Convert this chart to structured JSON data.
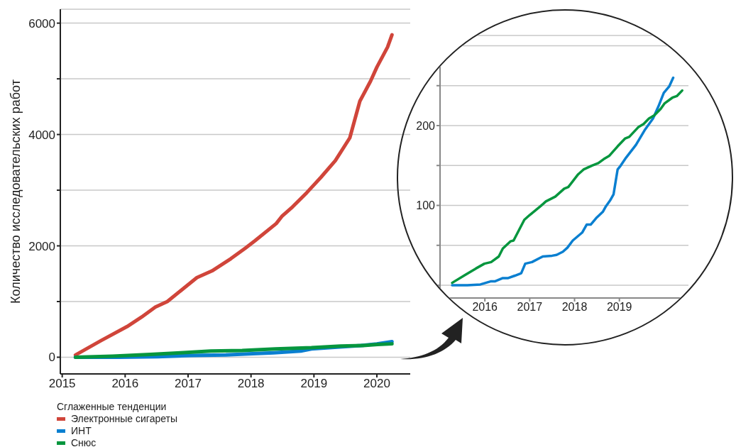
{
  "chart_data": [
    {
      "type": "line",
      "ylabel": "Количество исследовательских работ",
      "legend_title": "Сглаженные тенденции",
      "legend": "bottom left",
      "grid": "y",
      "marker": "none",
      "line_style": "solid",
      "xlim": [
        2014.97,
        2020.53
      ],
      "xticks": [
        2015,
        2016,
        2017,
        2018,
        2019,
        2020
      ],
      "ylim": [
        -300,
        6250
      ],
      "yticks": [
        0,
        {
          "value": 1000,
          "label": null
        },
        2000,
        {
          "value": 3000,
          "label": null
        },
        4000,
        {
          "value": 5000,
          "label": null
        },
        6000
      ],
      "series": [
        {
          "name": "Электронные сигареты",
          "color": "#d0453a",
          "x": [
            2015.21,
            2015.62,
            2016.03,
            2016.26,
            2016.48,
            2016.67,
            2016.9,
            2017.14,
            2017.38,
            2017.68,
            2017.91,
            2018.06,
            2018.4,
            2018.49,
            2018.66,
            2018.89,
            2019.11,
            2019.34,
            2019.57,
            2019.73,
            2019.9,
            2020.0,
            2020.17,
            2020.24
          ],
          "values": [
            40,
            300,
            550,
            720,
            900,
            1000,
            1210,
            1430,
            1550,
            1770,
            1960,
            2090,
            2400,
            2530,
            2700,
            2960,
            3230,
            3530,
            3940,
            4600,
            4960,
            5210,
            5570,
            5790
          ]
        },
        {
          "name": "ИНТ",
          "color": "#0a7fd0",
          "x": [
            2015.21,
            2015.9,
            2016.52,
            2017.05,
            2017.6,
            2017.96,
            2018.36,
            2018.79,
            2018.96,
            2019.37,
            2019.75,
            2020.0,
            2020.24
          ],
          "values": [
            0,
            0,
            10,
            30,
            40,
            60,
            80,
            110,
            150,
            180,
            210,
            240,
            280
          ]
        },
        {
          "name": "Снюс",
          "color": "#06963e",
          "x": [
            2015.21,
            2015.8,
            2016.4,
            2016.88,
            2017.36,
            2017.86,
            2018.39,
            2018.96,
            2019.42,
            2019.78,
            2020.01,
            2020.24
          ],
          "values": [
            0,
            20,
            50,
            80,
            110,
            120,
            150,
            170,
            200,
            210,
            230,
            240
          ]
        }
      ]
    },
    {
      "type": "line",
      "grid": "y",
      "marker": "none",
      "line_style": "solid",
      "xlim": [
        2015,
        2020.54
      ],
      "xticks": [
        2016,
        2017,
        2018,
        2019
      ],
      "ylim": [
        -16,
        313
      ],
      "yticks": [
        {
          "value": 0,
          "label": null
        },
        {
          "value": 50,
          "label": null
        },
        100,
        {
          "value": 150,
          "label": null
        },
        200,
        {
          "value": 250,
          "label": null
        },
        {
          "value": 300,
          "label": null
        }
      ],
      "series": [
        {
          "color": "#0a7fd0",
          "x": [
            2015.27,
            2015.61,
            2015.9,
            2016.14,
            2016.23,
            2016.4,
            2016.52,
            2016.67,
            2016.81,
            2016.9,
            2017.05,
            2017.29,
            2017.5,
            2017.6,
            2017.74,
            2017.84,
            2017.96,
            2018.17,
            2018.27,
            2018.36,
            2018.48,
            2018.63,
            2018.7,
            2018.79,
            2018.87,
            2018.96,
            2019.03,
            2019.15,
            2019.37,
            2019.56,
            2019.75,
            2019.87,
            2019.99,
            2020.11,
            2020.2
          ],
          "values": [
            0,
            0,
            1,
            5,
            5,
            9,
            9,
            12,
            15,
            27,
            29,
            36,
            37,
            38,
            42,
            47,
            56,
            66,
            76,
            76,
            84,
            92,
            99,
            106,
            114,
            145,
            150,
            160,
            176,
            194,
            209,
            224,
            241,
            249,
            260
          ]
        },
        {
          "color": "#06963e",
          "x": [
            2015.27,
            2015.56,
            2015.8,
            2015.99,
            2016.14,
            2016.31,
            2016.4,
            2016.57,
            2016.64,
            2016.88,
            2017.0,
            2017.24,
            2017.36,
            2017.57,
            2017.77,
            2017.86,
            2018.08,
            2018.2,
            2018.39,
            2018.53,
            2018.65,
            2018.77,
            2018.96,
            2019.13,
            2019.22,
            2019.42,
            2019.54,
            2019.66,
            2019.78,
            2019.92,
            2020.01,
            2020.18,
            2020.28,
            2020.4
          ],
          "values": [
            3,
            13,
            21,
            27,
            29,
            36,
            46,
            55,
            56,
            82,
            88,
            99,
            105,
            111,
            121,
            123,
            139,
            145,
            150,
            153,
            158,
            162,
            174,
            184,
            186,
            198,
            202,
            209,
            213,
            221,
            228,
            235,
            237,
            244
          ]
        }
      ]
    }
  ]
}
